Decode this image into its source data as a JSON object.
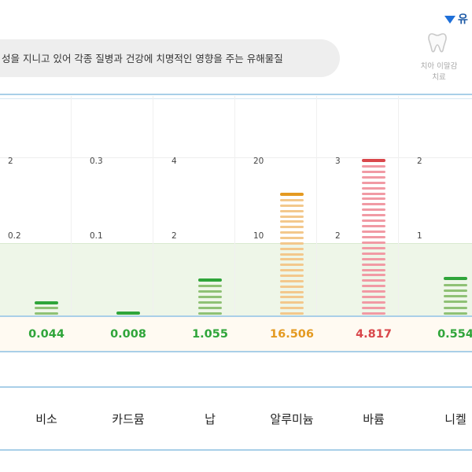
{
  "header": {
    "link_label": "유",
    "description": "성을 지니고 있어 각종 질병과 건강에 치명적인 영향을 주는 유해물질",
    "side_item": {
      "icon": "tooth-icon",
      "label_line1": "치아 이말감",
      "label_line2": "치료"
    }
  },
  "colors": {
    "green_dark": "#2fa53a",
    "green_light": "#8fc175",
    "orange_dark": "#e49a21",
    "orange_light": "#f3c88c",
    "red_dark": "#d9474b",
    "red_light": "#f19aa4",
    "rule_blue": "#a9cfe8",
    "band_green": "#eef6e8"
  },
  "chart_data": {
    "type": "bar",
    "categories": [
      "비소",
      "카드뮴",
      "납",
      "알루미늄",
      "바륨",
      "니켈"
    ],
    "values": [
      0.044,
      0.008,
      1.055,
      16.506,
      4.817,
      0.554
    ],
    "value_labels": [
      "0.044",
      "0.008",
      "1.055",
      "16.506",
      "4.817",
      "0.554"
    ],
    "level": [
      "normal",
      "normal",
      "normal",
      "caution",
      "danger",
      "normal"
    ],
    "scale_upper_labels": [
      "2",
      "0.3",
      "4",
      "20",
      "3",
      "2"
    ],
    "scale_lower_labels": [
      "0.2",
      "0.1",
      "2",
      "10",
      "2",
      "1"
    ],
    "scale_upper": [
      2,
      0.3,
      4,
      20,
      3,
      2
    ],
    "scale_lower": [
      0.2,
      0.1,
      2,
      10,
      2,
      1
    ],
    "normal_band": "green, below lower reference"
  }
}
